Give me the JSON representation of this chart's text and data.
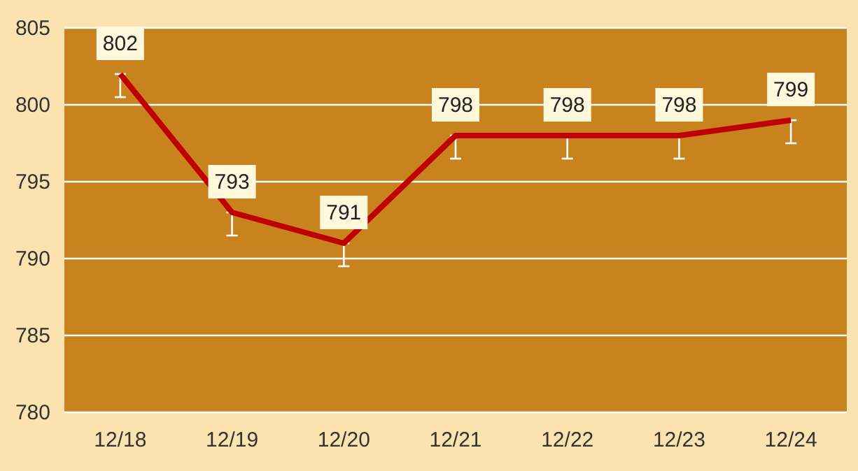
{
  "chart_data": {
    "type": "line",
    "categories": [
      "12/18",
      "12/19",
      "12/20",
      "12/21",
      "12/22",
      "12/23",
      "12/24"
    ],
    "series": [
      {
        "color": "#c00000",
        "values": [
          802,
          793,
          791,
          798,
          798,
          798,
          799
        ],
        "errors": [
          [
            800.5,
            802
          ],
          [
            791.5,
            793
          ],
          [
            789.5,
            791
          ],
          [
            796.5,
            798
          ],
          [
            796.5,
            798
          ],
          [
            796.5,
            798
          ],
          [
            797.5,
            799
          ]
        ]
      }
    ],
    "ylim": [
      780,
      805
    ],
    "yticks": [
      780,
      785,
      790,
      795,
      800,
      805
    ],
    "grid": "y",
    "data_labels": true,
    "marker": "none",
    "line_style": "solid"
  }
}
